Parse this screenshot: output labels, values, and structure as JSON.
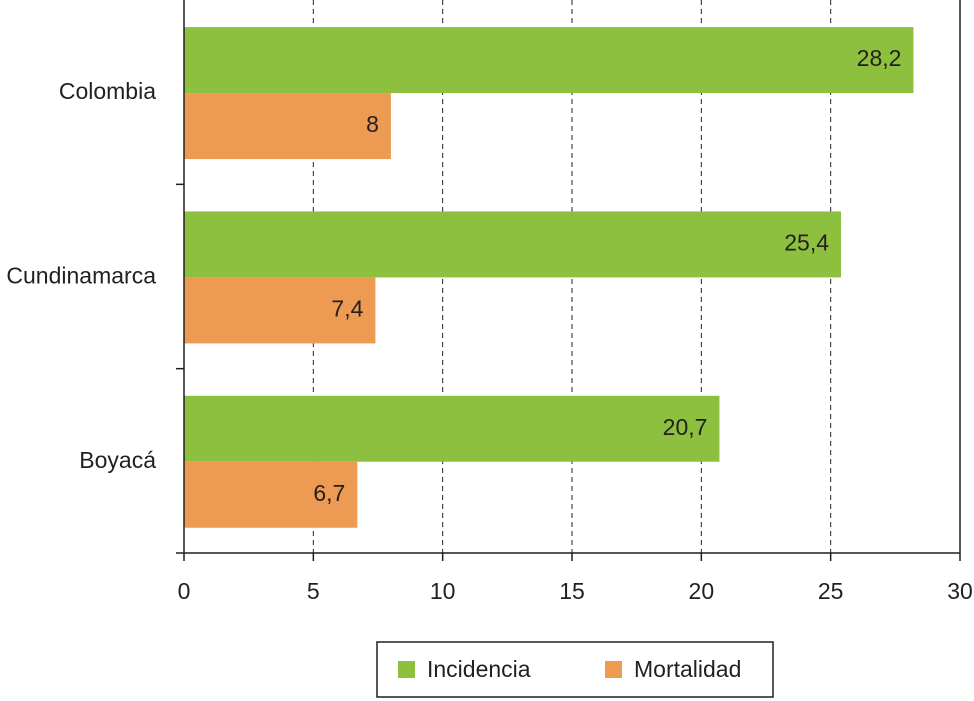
{
  "chart_data": {
    "type": "bar",
    "orientation": "horizontal",
    "categories": [
      "Colombia",
      "Cundinamarca",
      "Boyacá"
    ],
    "series": [
      {
        "name": "Incidencia",
        "color": "#8dc03f",
        "values": [
          28.2,
          25.4,
          20.7
        ],
        "value_labels": [
          "28,2",
          "25,4",
          "20,7"
        ]
      },
      {
        "name": "Mortalidad",
        "color": "#ed9a52",
        "values": [
          8,
          7.4,
          6.7
        ],
        "value_labels": [
          "8",
          "7,4",
          "6,7"
        ]
      }
    ],
    "xlim": [
      0,
      30
    ],
    "xticks": [
      0,
      5,
      10,
      15,
      20,
      25,
      30
    ],
    "grid": true,
    "legend": "bottom"
  }
}
